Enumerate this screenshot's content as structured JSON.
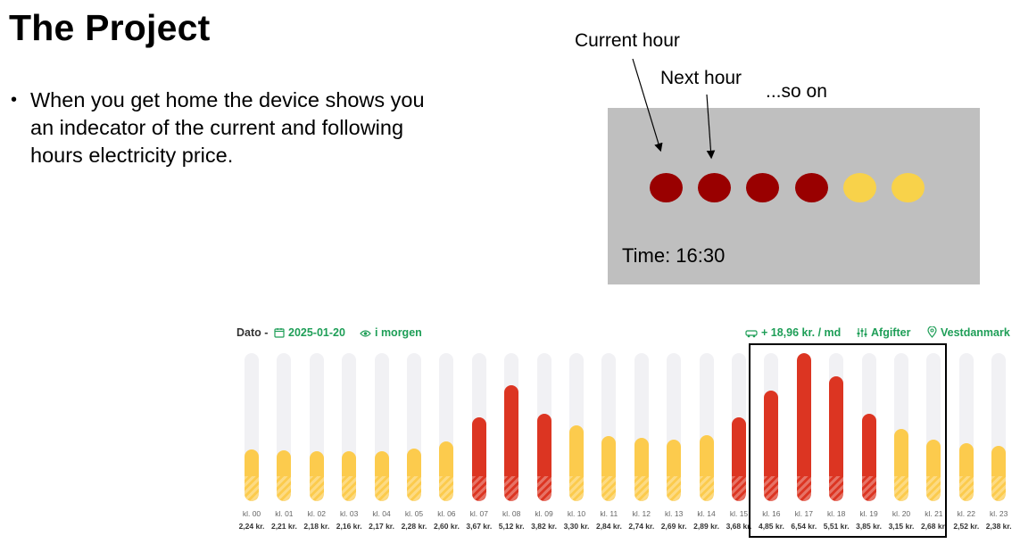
{
  "slide": {
    "title": "The Project",
    "bullet": "When you get home the device shows you an indecator of the current and following hours electricity price."
  },
  "device": {
    "labels": {
      "current": "Current hour",
      "next": "Next hour",
      "so_on": "...so on"
    },
    "leds": [
      {
        "color": "#990000"
      },
      {
        "color": "#990000"
      },
      {
        "color": "#990000"
      },
      {
        "color": "#990000"
      },
      {
        "color": "#f8d24a"
      },
      {
        "color": "#f8d24a"
      }
    ],
    "time_text": "Time: 16:30"
  },
  "price_widget": {
    "header": {
      "dato_label": "Dato -",
      "date": "2025-01-20",
      "tomorrow": "i morgen",
      "fee": "+ 18,96 kr. / md",
      "afgifter": "Afgifter",
      "region": "Vestdanmark"
    },
    "colors": {
      "low": "#fccb4d",
      "high": "#dc3522",
      "track": "#f1f1f4",
      "accent": "#1e9e57"
    },
    "highlighted_hours": [
      "kl. 16",
      "kl. 21"
    ]
  },
  "chart_data": {
    "type": "bar",
    "categories": [
      "kl. 00",
      "kl. 01",
      "kl. 02",
      "kl. 03",
      "kl. 04",
      "kl. 05",
      "kl. 06",
      "kl. 07",
      "kl. 08",
      "kl. 09",
      "kl. 10",
      "kl. 11",
      "kl. 12",
      "kl. 13",
      "kl. 14",
      "kl. 15",
      "kl. 16",
      "kl. 17",
      "kl. 18",
      "kl. 19",
      "kl. 20",
      "kl. 21",
      "kl. 22",
      "kl. 23"
    ],
    "price_labels": [
      "2,24 kr.",
      "2,21 kr.",
      "2,18 kr.",
      "2,16 kr.",
      "2,17 kr.",
      "2,28 kr.",
      "2,60 kr.",
      "3,67 kr.",
      "5,12 kr.",
      "3,82 kr.",
      "3,30 kr.",
      "2,84 kr.",
      "2,74 kr.",
      "2,69 kr.",
      "2,89 kr.",
      "3,68 kr.",
      "4,85 kr.",
      "6,54 kr.",
      "5,51 kr.",
      "3,85 kr.",
      "3,15 kr.",
      "2,68 kr.",
      "2,52 kr.",
      "2,38 kr."
    ],
    "values": [
      2.24,
      2.21,
      2.18,
      2.16,
      2.17,
      2.28,
      2.6,
      3.67,
      5.12,
      3.82,
      3.3,
      2.84,
      2.74,
      2.69,
      2.89,
      3.68,
      4.85,
      6.54,
      5.51,
      3.85,
      3.15,
      2.68,
      2.52,
      2.38
    ],
    "levels": [
      "low",
      "low",
      "low",
      "low",
      "low",
      "low",
      "low",
      "high",
      "high",
      "high",
      "low",
      "low",
      "low",
      "low",
      "low",
      "high",
      "high",
      "high",
      "high",
      "high",
      "low",
      "low",
      "low",
      "low"
    ],
    "ylim": [
      0,
      6.54
    ]
  }
}
